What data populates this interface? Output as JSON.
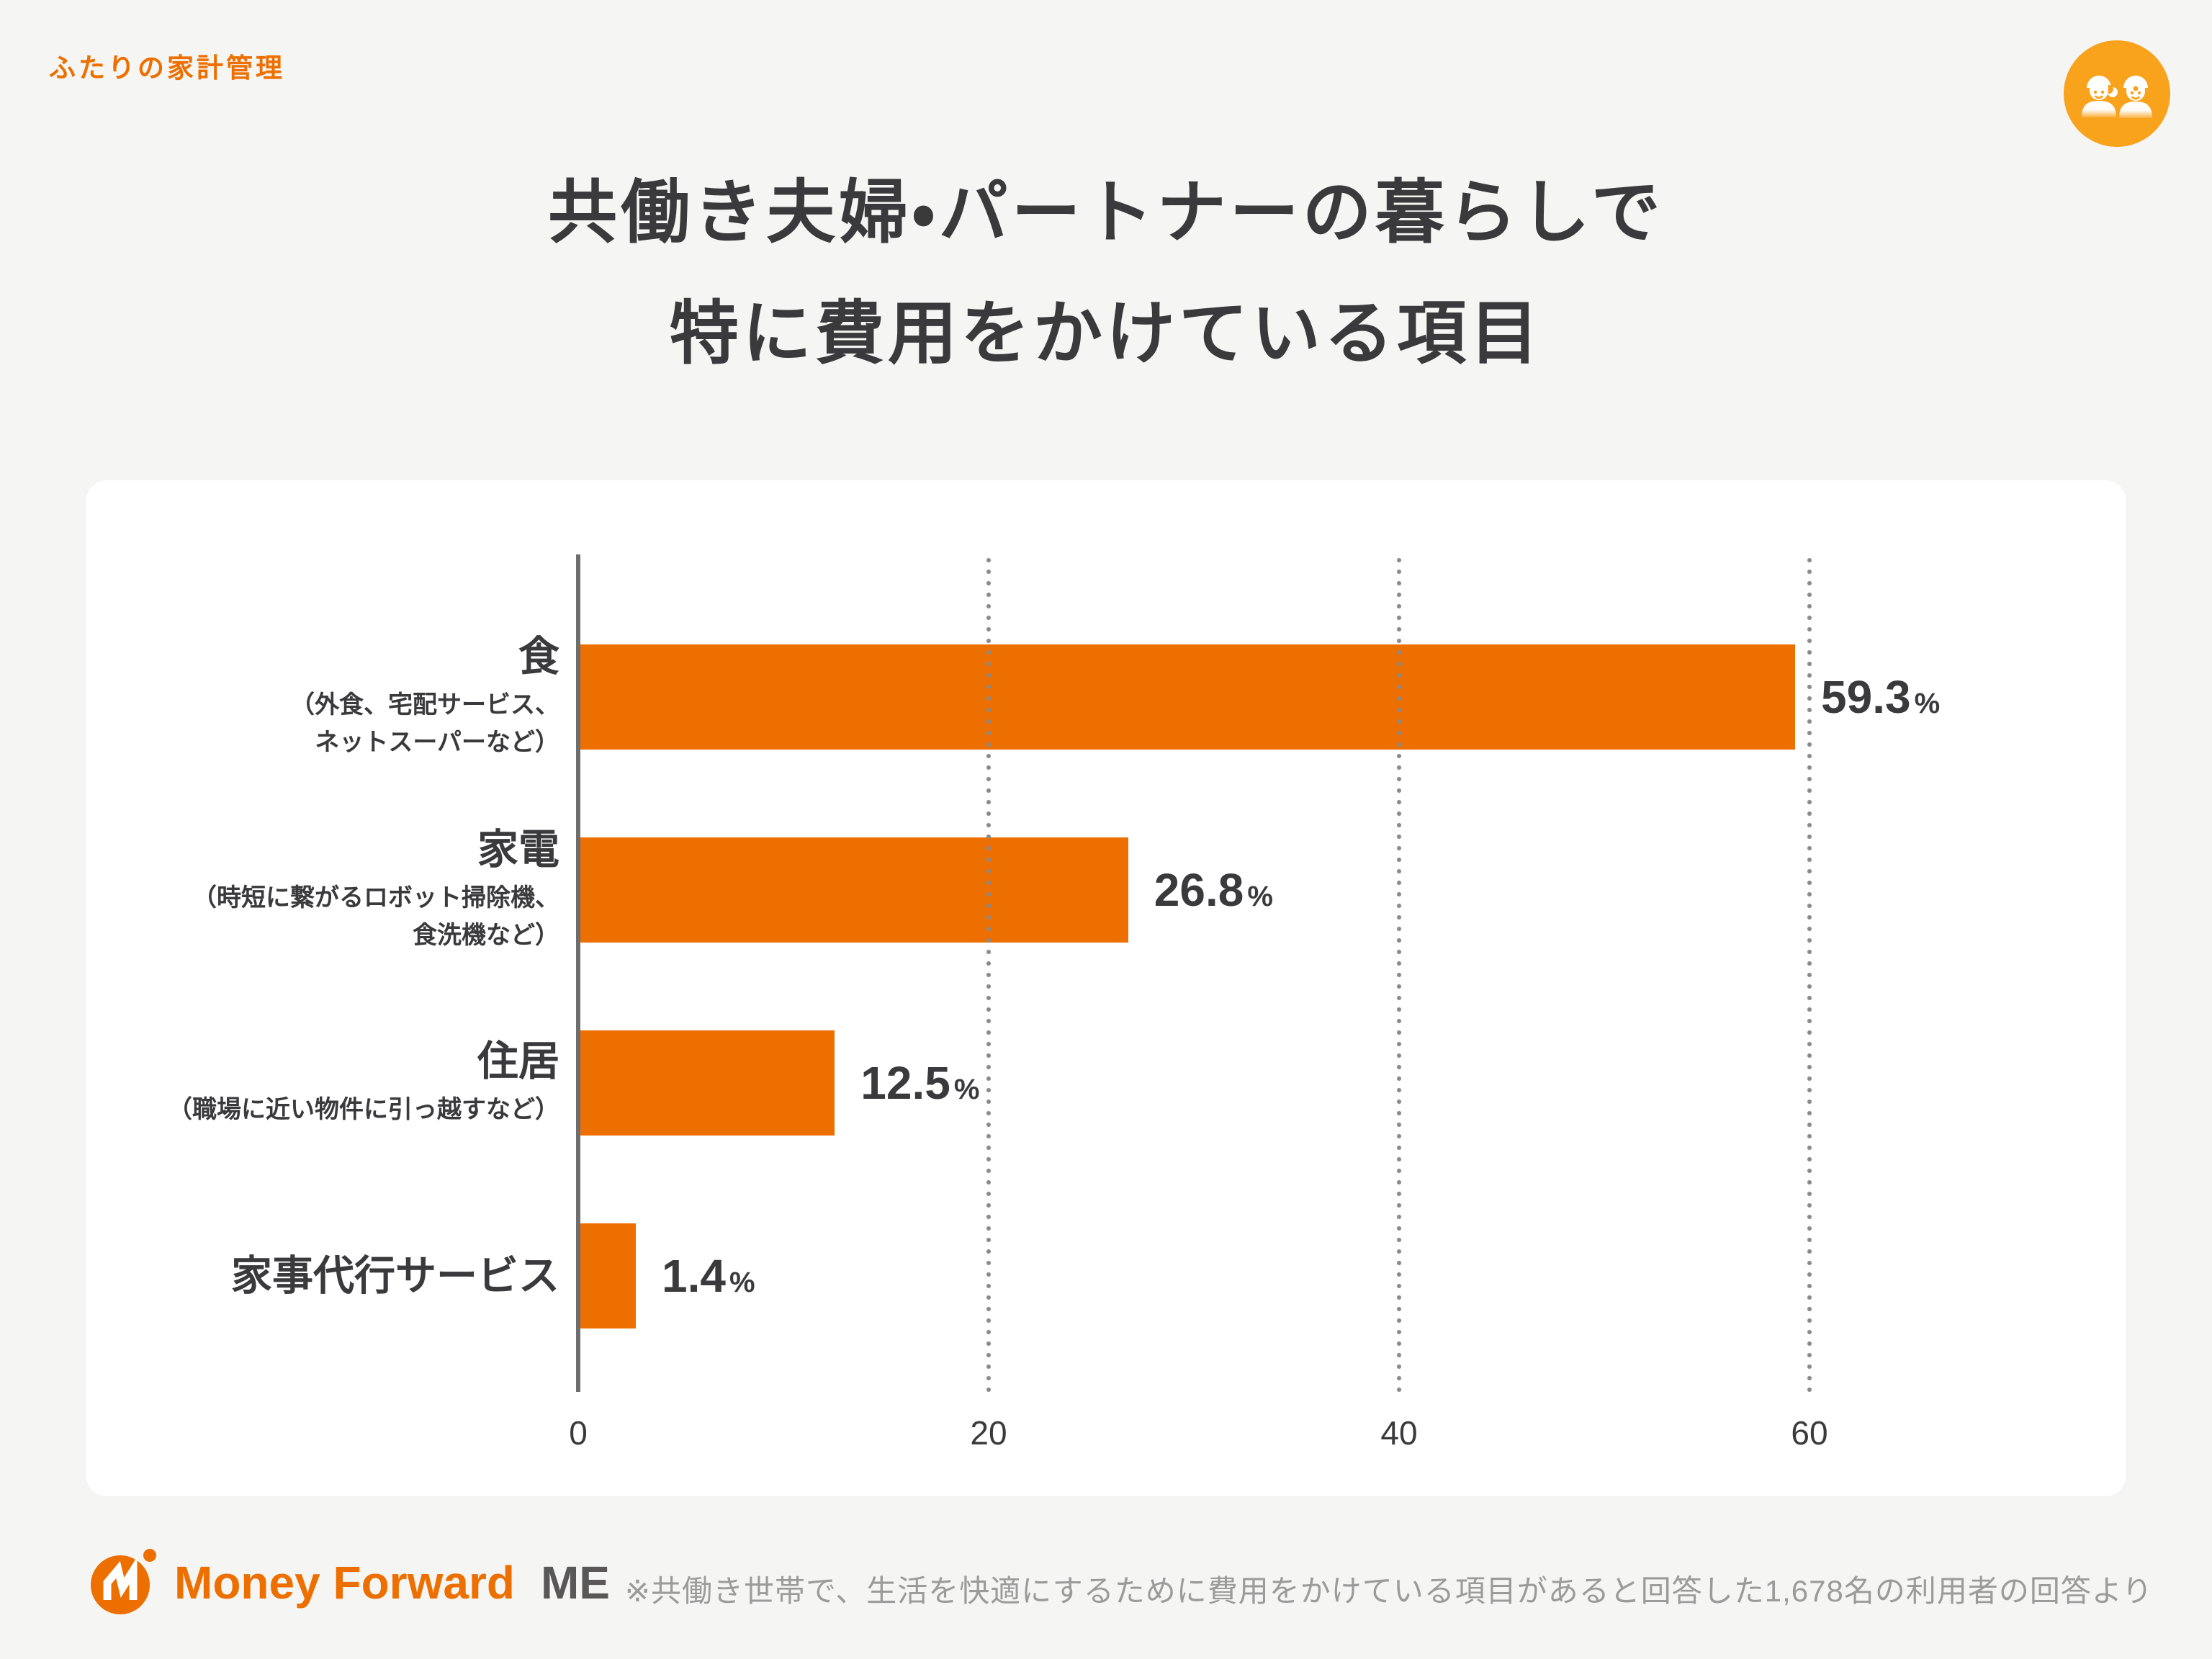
{
  "page": {
    "background": "#F5F5F4",
    "accent": "#ED6F00",
    "ink": "#3A3A3C",
    "axis_color": "#6E6E6E",
    "grid_dot_color": "#8A8A8A",
    "muted": "#9B9B9B"
  },
  "header": {
    "category_label": "ふたりの家計管理",
    "icon": "couple-icon",
    "icon_color": "#F9A21C"
  },
  "title": {
    "line1": "共働き夫婦・パートナーの暮らしで",
    "line2": "特に費用をかけている項目"
  },
  "chart_data": {
    "type": "bar",
    "orientation": "horizontal",
    "title": "共働き夫婦・パートナーの暮らしで特に費用をかけている項目",
    "categories": [
      "食",
      "家電",
      "住居",
      "家事代行サービス"
    ],
    "category_notes": [
      "（外食、宅配サービス、\nネットスーパーなど）",
      "（時短に繋がるロボット掃除機、\n食洗機など）",
      "（職場に近い物件に引っ越すなど）",
      ""
    ],
    "values": [
      59.3,
      26.8,
      12.5,
      1.4
    ],
    "value_labels": [
      "59.3",
      "26.8",
      "12.5",
      "1.4"
    ],
    "unit": "%",
    "xlabel": "",
    "ylabel": "",
    "xlim": [
      0,
      65
    ],
    "x_ticks": [
      0,
      20,
      40,
      60
    ],
    "bar_color": "#ED6F00",
    "grid": "dotted-vertical",
    "legend": "none"
  },
  "footer": {
    "logo": {
      "mark": "money-forward-logo-mark",
      "brand": "Money Forward",
      "suffix": "ME"
    },
    "note": "※共働き世帯で、生活を快適にするために費用をかけている項目があると回答した1,678名の利用者の回答より"
  }
}
